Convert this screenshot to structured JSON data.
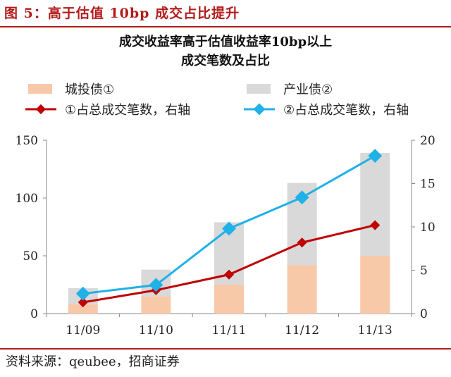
{
  "figure_title": "图 5：高于估值 10bp 成交占比提升",
  "source": "资料来源：qeubee，招商证券",
  "colors": {
    "cheng_tou_bar": "#f8c9a9",
    "chan_ye_bar": "#d9d9d9",
    "cheng_tou_line": "#c00000",
    "chan_ye_line": "#1fb1e8",
    "accent": "#b31b1b"
  },
  "chart_data": {
    "type": "bar",
    "title": [
      "成交收益率高于估值收益率10bp以上",
      "成交笔数及占比"
    ],
    "categories": [
      "11/09",
      "11/10",
      "11/11",
      "11/12",
      "11/13"
    ],
    "stacked": true,
    "series": [
      {
        "name": "城投债①",
        "type": "bar",
        "axis": "left",
        "color": "#f8c9a9",
        "values": [
          8,
          15,
          25,
          42,
          50
        ]
      },
      {
        "name": "产业债②",
        "type": "bar",
        "axis": "left",
        "color": "#d9d9d9",
        "values": [
          14,
          23,
          54,
          71,
          89
        ]
      },
      {
        "name": "①占总成交笔数，右轴",
        "type": "line",
        "axis": "right",
        "color": "#c00000",
        "values": [
          1.3,
          2.7,
          4.5,
          8.2,
          10.2
        ]
      },
      {
        "name": "②占总成交笔数，右轴",
        "type": "line",
        "axis": "right",
        "color": "#1fb1e8",
        "values": [
          2.3,
          3.3,
          9.8,
          13.4,
          18.2
        ]
      }
    ],
    "y_left": {
      "ylim": [
        0,
        150
      ],
      "ticks": [
        "0",
        "50",
        "100",
        "150"
      ]
    },
    "y_right": {
      "ylim": [
        0,
        20
      ],
      "ticks": [
        "0",
        "5",
        "10",
        "15",
        "20"
      ]
    },
    "grid": false,
    "legend_position": "top"
  }
}
